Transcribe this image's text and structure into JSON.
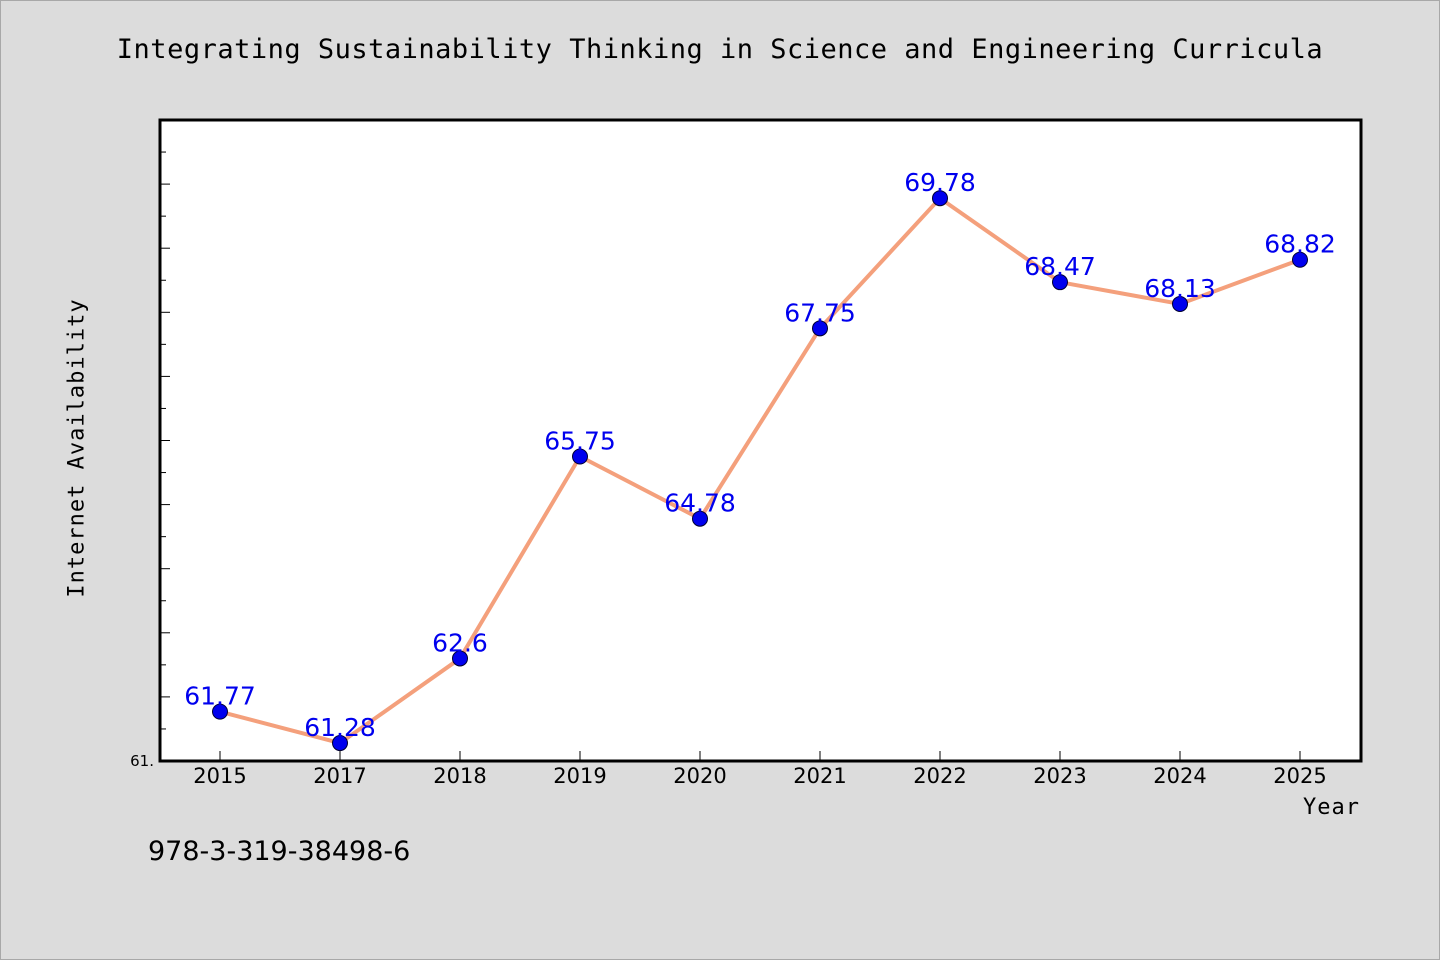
{
  "chart_data": {
    "type": "line",
    "title": "Integrating Sustainability Thinking in Science and Engineering Curricula",
    "xlabel": "Year",
    "ylabel": "Internet Availability",
    "categories": [
      "2015",
      "2017",
      "2018",
      "2019",
      "2020",
      "2021",
      "2022",
      "2023",
      "2024",
      "2025"
    ],
    "values": [
      61.77,
      61.28,
      62.6,
      65.75,
      64.78,
      67.75,
      69.78,
      68.47,
      68.13,
      68.82
    ],
    "data_labels": [
      "61.77",
      "61.28",
      "62.6",
      "65.75",
      "64.78",
      "67.75",
      "69.78",
      "68.47",
      "68.13",
      "68.82"
    ],
    "ylim": [
      61.0,
      71.0
    ],
    "y_min_label": "61.",
    "grid": false,
    "line_color": "#f4a07c",
    "marker_color": "#0000ee"
  },
  "footer": {
    "isbn": "978-3-319-38498-6"
  }
}
